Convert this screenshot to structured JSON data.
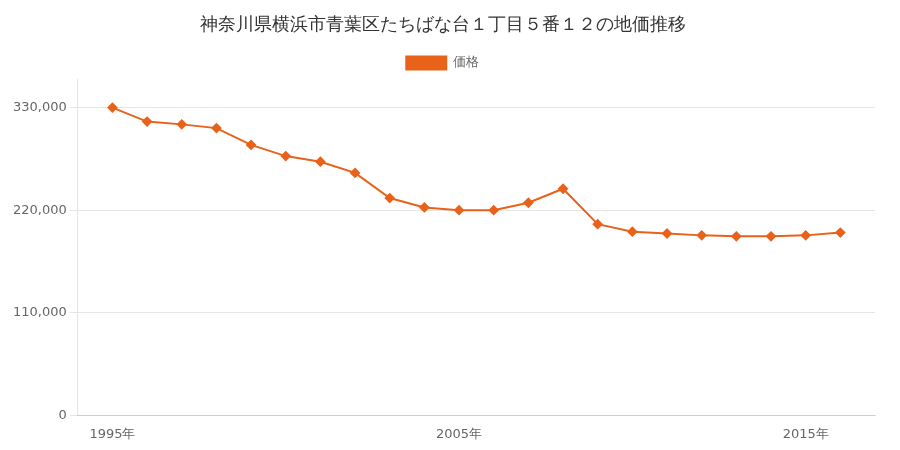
{
  "chart_data": {
    "type": "line",
    "title": "神奈川県横浜市青葉区たちばな台１丁目５番１２の地価推移",
    "x": [
      1995,
      1996,
      1997,
      1998,
      1999,
      2000,
      2001,
      2002,
      2003,
      2004,
      2005,
      2006,
      2007,
      2008,
      2009,
      2010,
      2011,
      2012,
      2013,
      2014,
      2015,
      2016
    ],
    "series": [
      {
        "name": "価格",
        "color": "#e8621a",
        "marker": "diamond",
        "values": [
          330000,
          315000,
          312000,
          308000,
          290000,
          278000,
          272000,
          260000,
          233000,
          223000,
          220000,
          220000,
          228000,
          243000,
          205000,
          197000,
          195000,
          193000,
          192000,
          192000,
          193000,
          196000
        ]
      }
    ],
    "xlim": [
      1994.0,
      2017.0
    ],
    "xticks": [
      {
        "value": 1995,
        "label": "1995年"
      },
      {
        "value": 2005,
        "label": "2005年"
      },
      {
        "value": 2015,
        "label": "2015年"
      }
    ],
    "ylim": [
      0,
      360000
    ],
    "yticks": [
      0,
      {
        "value": 110000,
        "label": "110,000"
      },
      {
        "value": 220000,
        "label": "220,000"
      },
      {
        "value": 330000,
        "label": "330,000"
      }
    ],
    "grid": "y",
    "legend": "top"
  }
}
